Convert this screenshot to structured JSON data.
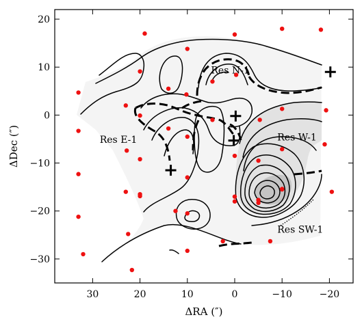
{
  "chart_data": {
    "type": "scatter",
    "xlabel": "ΔRA (″)",
    "ylabel": "ΔDec (″)",
    "xlim": [
      38,
      -25
    ],
    "ylim": [
      -35,
      22
    ],
    "x_ticks": [
      30,
      20,
      10,
      0,
      -10,
      -20
    ],
    "x_tick_labels": [
      "30",
      "20",
      "10",
      "0",
      "−10",
      "−20"
    ],
    "y_ticks": [
      20,
      10,
      0,
      -10,
      -20,
      -30
    ],
    "y_tick_labels": [
      "20",
      "10",
      "0",
      "−10",
      "−20",
      "−30"
    ],
    "grid": false,
    "annotations": [
      {
        "text": "Res N-1",
        "x": 5,
        "y": 8.7
      },
      {
        "text": "Res E-1",
        "x": 28.5,
        "y": -5.8
      },
      {
        "text": "Res W-1",
        "x": -9,
        "y": -5.3
      },
      {
        "text": "Res SW-1",
        "x": -9,
        "y": -24.5
      }
    ],
    "crosses": [
      {
        "x": 13.5,
        "y": -11.5
      },
      {
        "x": -0.2,
        "y": -0.2
      },
      {
        "x": 0.2,
        "y": -5.3
      },
      {
        "x": -20.2,
        "y": 9
      }
    ],
    "series": [
      {
        "color": "#ee1111",
        "x": [
          19,
          10,
          0,
          -10,
          -18.2,
          33,
          20,
          14,
          10.2,
          4.7,
          -0.3,
          23,
          20,
          14,
          4.7,
          -5.3,
          -10,
          -19.3,
          33,
          22.8,
          20,
          10,
          0,
          -5,
          -10,
          -19,
          33,
          20,
          10,
          0,
          -5,
          -10,
          -20.5,
          23,
          20,
          10,
          0,
          -5,
          -10,
          33,
          12.5,
          10,
          2.5,
          -7.5,
          32,
          22.5,
          21.7
        ],
        "y": [
          17,
          13.8,
          16.8,
          18,
          17.8,
          4.7,
          9.1,
          5.5,
          4.3,
          7,
          8.4,
          2,
          -0.1,
          -2.8,
          -1,
          -1,
          1.3,
          1,
          -3.3,
          -7.4,
          -9.2,
          -4.5,
          -8.5,
          -9.5,
          -7.1,
          -6.1,
          -12.3,
          -16.9,
          -13,
          -17,
          -17.7,
          -15.5,
          -16,
          -16,
          -16.5,
          -20.5,
          -18,
          -18.3,
          -15.4,
          -21.2,
          -20,
          -28.3,
          -26.3,
          -26.3,
          -29,
          -24.8,
          -32.3
        ]
      }
    ]
  }
}
